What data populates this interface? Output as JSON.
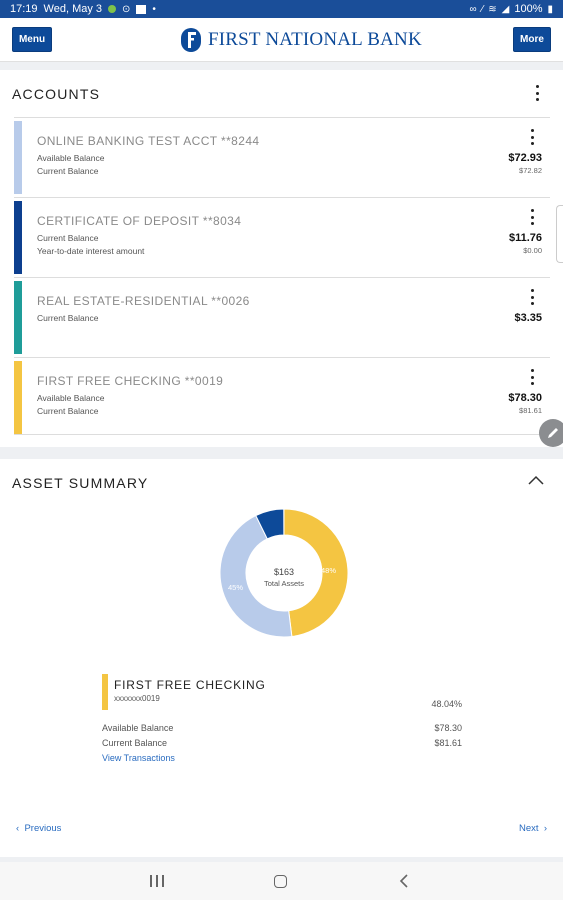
{
  "status_bar": {
    "time": "17:19",
    "date": "Wed, May 3",
    "battery": "100%",
    "icons": [
      "shield-icon",
      "notification-dot-icon",
      "alarm-icon",
      "gallery-icon",
      "dot-icon",
      "link-icon",
      "mute-icon",
      "wifi-icon",
      "signal-icon",
      "battery-icon"
    ]
  },
  "header": {
    "menu_label": "Menu",
    "more_label": "More",
    "logo_text": "FIRST NATIONAL BANK"
  },
  "accounts": {
    "title": "ACCOUNTS",
    "items": [
      {
        "name": "ONLINE BANKING TEST ACCT **8244",
        "label1": "Available Balance",
        "label2": "Current Balance",
        "amount1": "$72.93",
        "amount2": "$72.82",
        "color": "#b8cbea"
      },
      {
        "name": "CERTIFICATE OF DEPOSIT **8034",
        "label1": "Current Balance",
        "label2": "Year-to-date interest amount",
        "amount1": "$11.76",
        "amount2": "$0.00",
        "color": "#0d3f8f"
      },
      {
        "name": "REAL ESTATE-RESIDENTIAL **0026",
        "label1": "Current Balance",
        "label2": "",
        "amount1": "$3.35",
        "amount2": "",
        "color": "#1f9d99"
      },
      {
        "name": "FIRST FREE CHECKING **0019",
        "label1": "Available Balance",
        "label2": "Current Balance",
        "amount1": "$78.30",
        "amount2": "$81.61",
        "color": "#f4c542"
      }
    ]
  },
  "asset_summary": {
    "title": "ASSET SUMMARY",
    "total_value": "$163",
    "total_label": "Total Assets",
    "slice_label_yellow": "48%",
    "slice_label_light": "45%",
    "detail": {
      "name": "FIRST FREE CHECKING",
      "number": "xxxxxxx0019",
      "percent": "48.04%",
      "row1_label": "Available Balance",
      "row1_value": "$78.30",
      "row2_label": "Current Balance",
      "row2_value": "$81.61",
      "link": "View Transactions"
    },
    "prev_label": "Previous",
    "next_label": "Next"
  },
  "chart_data": {
    "type": "pie",
    "donut": true,
    "categories": [
      "FIRST FREE CHECKING",
      "ONLINE BANKING TEST ACCT",
      "CERTIFICATE OF DEPOSIT",
      "REAL ESTATE-RESIDENTIAL"
    ],
    "values": [
      48.04,
      44.7,
      7.2,
      0.06
    ],
    "colors": [
      "#f4c542",
      "#b8cbea",
      "#0d4a99",
      "#1f9d99"
    ],
    "title": "",
    "center_text": "$163 Total Assets"
  }
}
